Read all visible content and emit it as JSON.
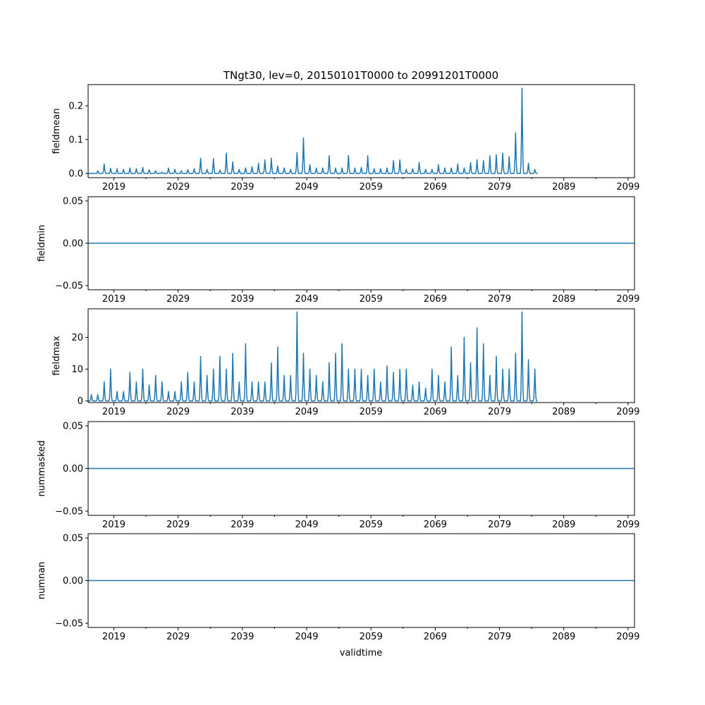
{
  "chart_data": {
    "type": "line",
    "title": "TNgt30, lev=0, 20150101T0000 to 20991201T0000",
    "xlabel": "validtime",
    "x_range": [
      2015.0,
      2100.0
    ],
    "x_ticks": [
      2019,
      2029,
      2039,
      2049,
      2059,
      2069,
      2079,
      2089,
      2099
    ],
    "x_minor_ticks": [
      2024,
      2034,
      2044,
      2054,
      2064,
      2074,
      2084,
      2094
    ],
    "color": "#1f77b4",
    "panels": [
      {
        "name": "fieldmean",
        "ylabel": "fieldmean",
        "ylim": [
          -0.0125,
          0.2625
        ],
        "yticks": [
          0.0,
          0.1,
          0.2
        ],
        "ytick_labels": [
          "0.0",
          "0.1",
          "0.2"
        ],
        "mode": "seasonal",
        "base": 0.0,
        "annual_peaks": [
          0.0,
          0.008,
          0.028,
          0.015,
          0.014,
          0.012,
          0.016,
          0.014,
          0.018,
          0.011,
          0.008,
          0.004,
          0.016,
          0.012,
          0.008,
          0.011,
          0.014,
          0.045,
          0.012,
          0.044,
          0.01,
          0.06,
          0.034,
          0.012,
          0.016,
          0.02,
          0.03,
          0.04,
          0.045,
          0.022,
          0.016,
          0.012,
          0.062,
          0.105,
          0.026,
          0.016,
          0.016,
          0.052,
          0.016,
          0.016,
          0.053,
          0.016,
          0.018,
          0.052,
          0.014,
          0.014,
          0.016,
          0.038,
          0.04,
          0.012,
          0.014,
          0.032,
          0.012,
          0.012,
          0.026,
          0.016,
          0.016,
          0.028,
          0.016,
          0.032,
          0.04,
          0.038,
          0.052,
          0.055,
          0.06,
          0.05,
          0.12,
          0.252,
          0.03,
          0.012
        ]
      },
      {
        "name": "fieldmin",
        "ylabel": "fieldmin",
        "ylim": [
          -0.055,
          0.055
        ],
        "yticks": [
          -0.05,
          0.0,
          0.05
        ],
        "ytick_labels": [
          "−0.05",
          "0.00",
          "0.05"
        ],
        "mode": "constant",
        "constant": 0.0
      },
      {
        "name": "fieldmax",
        "ylabel": "fieldmax",
        "ylim": [
          -0.5,
          29.0
        ],
        "yticks": [
          0,
          10,
          20
        ],
        "ytick_labels": [
          "0",
          "10",
          "20"
        ],
        "mode": "seasonal",
        "base": 0.0,
        "annual_peaks": [
          2,
          2,
          6,
          10,
          3,
          3,
          9,
          6,
          10,
          5,
          8,
          6,
          3,
          3,
          6,
          9,
          6,
          14,
          8,
          10,
          14,
          10,
          15,
          6,
          18,
          6,
          6,
          6,
          12,
          17,
          8,
          8,
          28,
          15,
          10,
          8,
          6,
          12,
          15,
          18,
          10,
          10,
          10,
          8,
          10,
          6,
          11,
          9,
          10,
          10,
          5,
          6,
          4,
          10,
          8,
          6,
          17,
          8,
          20,
          12,
          23,
          18,
          8,
          14,
          10,
          10,
          15,
          28,
          13,
          10
        ]
      },
      {
        "name": "nummasked",
        "ylabel": "nummasked",
        "ylim": [
          -0.055,
          0.055
        ],
        "yticks": [
          -0.05,
          0.0,
          0.05
        ],
        "ytick_labels": [
          "−0.05",
          "0.00",
          "0.05"
        ],
        "mode": "constant",
        "constant": 0.0
      },
      {
        "name": "numnan",
        "ylabel": "numnan",
        "ylim": [
          -0.055,
          0.055
        ],
        "yticks": [
          -0.05,
          0.0,
          0.05
        ],
        "ytick_labels": [
          "−0.05",
          "0.00",
          "0.05"
        ],
        "mode": "constant",
        "constant": 0.0
      }
    ]
  }
}
